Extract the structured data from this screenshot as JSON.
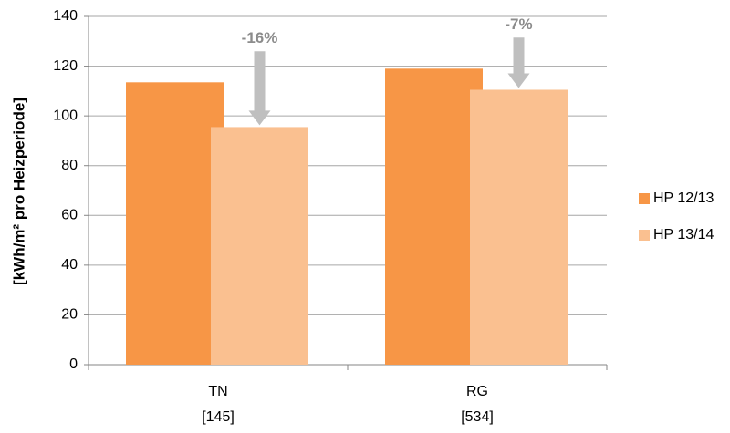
{
  "chart_data": {
    "type": "bar",
    "categories": [
      "TN\n[145]",
      "RG\n[534]"
    ],
    "series": [
      {
        "name": "HP 12/13",
        "color": "#f79646",
        "values": [
          113.5,
          119
        ]
      },
      {
        "name": "HP 13/14",
        "color": "#fac090",
        "values": [
          95.5,
          110.5
        ]
      }
    ],
    "annotations": [
      "-16%",
      "-7%"
    ],
    "y_label": "[kWh/m² pro Heizperiode]",
    "ylim": [
      0,
      140
    ],
    "yticks": [
      0,
      20,
      40,
      60,
      80,
      100,
      120,
      140
    ],
    "grid": true,
    "legend": "right"
  }
}
